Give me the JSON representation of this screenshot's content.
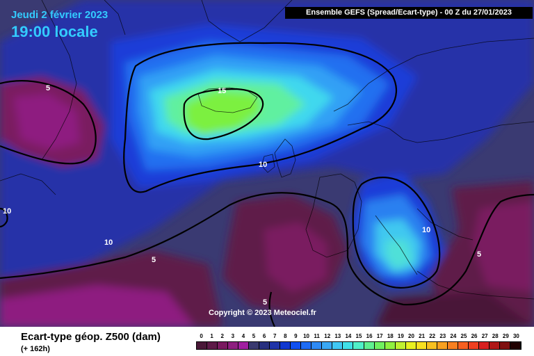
{
  "header": {
    "date": "Jeudi 2 février 2023",
    "time": "19:00 locale",
    "run_info": "Ensemble GEFS  (Spread/Ecart-type) - 00 Z du 27/01/2023",
    "copyright": "Copyright © 2023 Meteociel.fr"
  },
  "footer": {
    "parameter": "Ecart-type géop. Z500 (dam)",
    "lead_time": "(+ 162h)"
  },
  "contour_labels": [
    "5",
    "15",
    "10",
    "10",
    "10",
    "5",
    "10",
    "5",
    "5"
  ],
  "scale": {
    "ticks": [
      "0",
      "1",
      "2",
      "3",
      "4",
      "5",
      "6",
      "7",
      "8",
      "9",
      "10",
      "11",
      "12",
      "13",
      "14",
      "15",
      "16",
      "17",
      "18",
      "19",
      "20",
      "21",
      "22",
      "23",
      "24",
      "25",
      "26",
      "27",
      "28",
      "29",
      "30"
    ],
    "colors": [
      "#4a1838",
      "#5e1a48",
      "#7a1a60",
      "#8e1f80",
      "#a020a0",
      "#3a3a70",
      "#283080",
      "#2034a8",
      "#1038d0",
      "#1050f0",
      "#1e6cf5",
      "#2e8af5",
      "#3aa8f5",
      "#40c8f5",
      "#40e0e8",
      "#50f0c8",
      "#60f090",
      "#70f060",
      "#90f040",
      "#c0f030",
      "#e8f020",
      "#f8e020",
      "#f8c020",
      "#f8a020",
      "#f88020",
      "#f86020",
      "#f04020",
      "#d82020",
      "#b01818",
      "#801010",
      "#200000"
    ]
  }
}
